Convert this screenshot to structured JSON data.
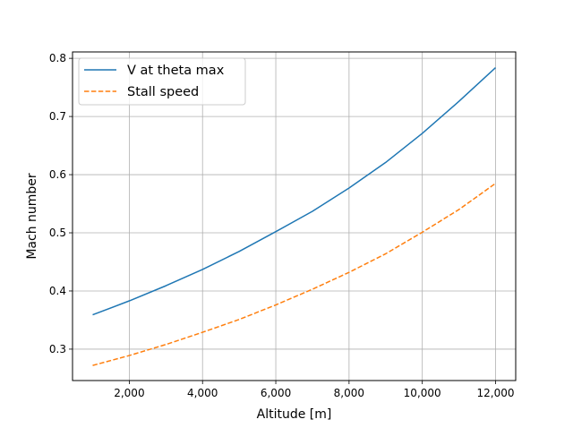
{
  "chart_data": {
    "type": "line",
    "title": "",
    "xlabel": "Altitude [m]",
    "ylabel": "Mach number",
    "xlim": [
      450,
      12550
    ],
    "ylim": [
      0.246,
      0.811
    ],
    "xticks": [
      2000,
      4000,
      6000,
      8000,
      10000,
      12000
    ],
    "xtick_labels": [
      "2,000",
      "4,000",
      "6,000",
      "8,000",
      "10,000",
      "12,000"
    ],
    "yticks": [
      0.3,
      0.4,
      0.5,
      0.6,
      0.7,
      0.8
    ],
    "ytick_labels": [
      "0.3",
      "0.4",
      "0.5",
      "0.6",
      "0.7",
      "0.8"
    ],
    "grid": true,
    "legend_position": "top-left",
    "x": [
      1000,
      2000,
      3000,
      4000,
      5000,
      6000,
      7000,
      8000,
      9000,
      10000,
      11000,
      12000
    ],
    "series": [
      {
        "name": "V at theta max",
        "color": "#1f77b4",
        "style": "solid",
        "values": [
          0.359,
          0.383,
          0.409,
          0.437,
          0.468,
          0.502,
          0.537,
          0.577,
          0.621,
          0.671,
          0.726,
          0.784
        ]
      },
      {
        "name": "Stall speed",
        "color": "#ff7f0e",
        "style": "dashed",
        "values": [
          0.272,
          0.289,
          0.308,
          0.329,
          0.351,
          0.376,
          0.403,
          0.432,
          0.464,
          0.501,
          0.54,
          0.585
        ]
      }
    ]
  }
}
